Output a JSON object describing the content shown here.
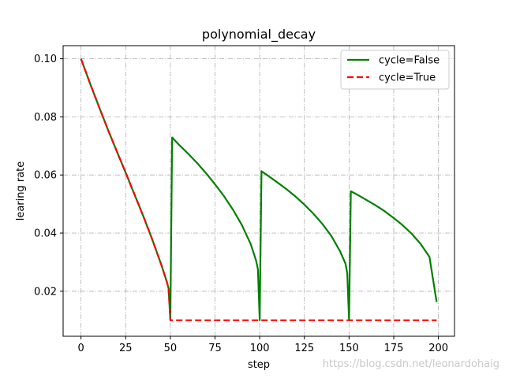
{
  "chart_data": {
    "type": "line",
    "title": "polynomial_decay",
    "xlabel": "step",
    "ylabel": "learing rate",
    "xlim": [
      -10,
      209
    ],
    "ylim": [
      0.0045,
      0.1045
    ],
    "xticks": [
      0,
      25,
      50,
      75,
      100,
      125,
      150,
      175,
      200
    ],
    "xtick_labels": [
      "0",
      "25",
      "50",
      "75",
      "100",
      "125",
      "150",
      "175",
      "200"
    ],
    "yticks": [
      0.02,
      0.04,
      0.06,
      0.08,
      0.1
    ],
    "ytick_labels": [
      "0.02",
      "0.04",
      "0.06",
      "0.08",
      "0.10"
    ],
    "grid": true,
    "legend_position": "top-right",
    "series": [
      {
        "name": "cycle=False",
        "color": "#008000",
        "style": "solid",
        "points": [
          [
            0,
            0.1
          ],
          [
            5,
            0.0916
          ],
          [
            10,
            0.0836
          ],
          [
            15,
            0.0757
          ],
          [
            20,
            0.0682
          ],
          [
            25,
            0.0608
          ],
          [
            30,
            0.0532
          ],
          [
            35,
            0.0456
          ],
          [
            40,
            0.0376
          ],
          [
            45,
            0.029
          ],
          [
            48,
            0.0233
          ],
          [
            49,
            0.021
          ],
          [
            50,
            0.01
          ],
          [
            51,
            0.0729
          ],
          [
            55,
            0.0703
          ],
          [
            60,
            0.0673
          ],
          [
            65,
            0.0641
          ],
          [
            70,
            0.0606
          ],
          [
            75,
            0.0568
          ],
          [
            80,
            0.0527
          ],
          [
            85,
            0.0481
          ],
          [
            90,
            0.0428
          ],
          [
            95,
            0.0362
          ],
          [
            98,
            0.0305
          ],
          [
            99,
            0.0275
          ],
          [
            100,
            0.01
          ],
          [
            101,
            0.0613
          ],
          [
            105,
            0.0596
          ],
          [
            110,
            0.0574
          ],
          [
            115,
            0.0551
          ],
          [
            120,
            0.0526
          ],
          [
            125,
            0.0498
          ],
          [
            130,
            0.0467
          ],
          [
            135,
            0.0432
          ],
          [
            140,
            0.0391
          ],
          [
            145,
            0.0337
          ],
          [
            148,
            0.0295
          ],
          [
            149,
            0.0262
          ],
          [
            150,
            0.01
          ],
          [
            151,
            0.0544
          ],
          [
            155,
            0.0531
          ],
          [
            160,
            0.0513
          ],
          [
            165,
            0.0495
          ],
          [
            170,
            0.0475
          ],
          [
            175,
            0.0452
          ],
          [
            180,
            0.0427
          ],
          [
            185,
            0.0398
          ],
          [
            190,
            0.0363
          ],
          [
            195,
            0.0318
          ],
          [
            199,
            0.0163
          ]
        ]
      },
      {
        "name": "cycle=True",
        "color": "#ff0000",
        "style": "dashed",
        "points": [
          [
            0,
            0.1
          ],
          [
            5,
            0.0916
          ],
          [
            10,
            0.0836
          ],
          [
            15,
            0.0757
          ],
          [
            20,
            0.0682
          ],
          [
            25,
            0.0608
          ],
          [
            30,
            0.0532
          ],
          [
            35,
            0.0456
          ],
          [
            40,
            0.0376
          ],
          [
            45,
            0.029
          ],
          [
            48,
            0.0233
          ],
          [
            49,
            0.021
          ],
          [
            50,
            0.01
          ],
          [
            199,
            0.01
          ]
        ]
      }
    ]
  },
  "watermark": "https://blog.csdn.net/leonardohaig"
}
